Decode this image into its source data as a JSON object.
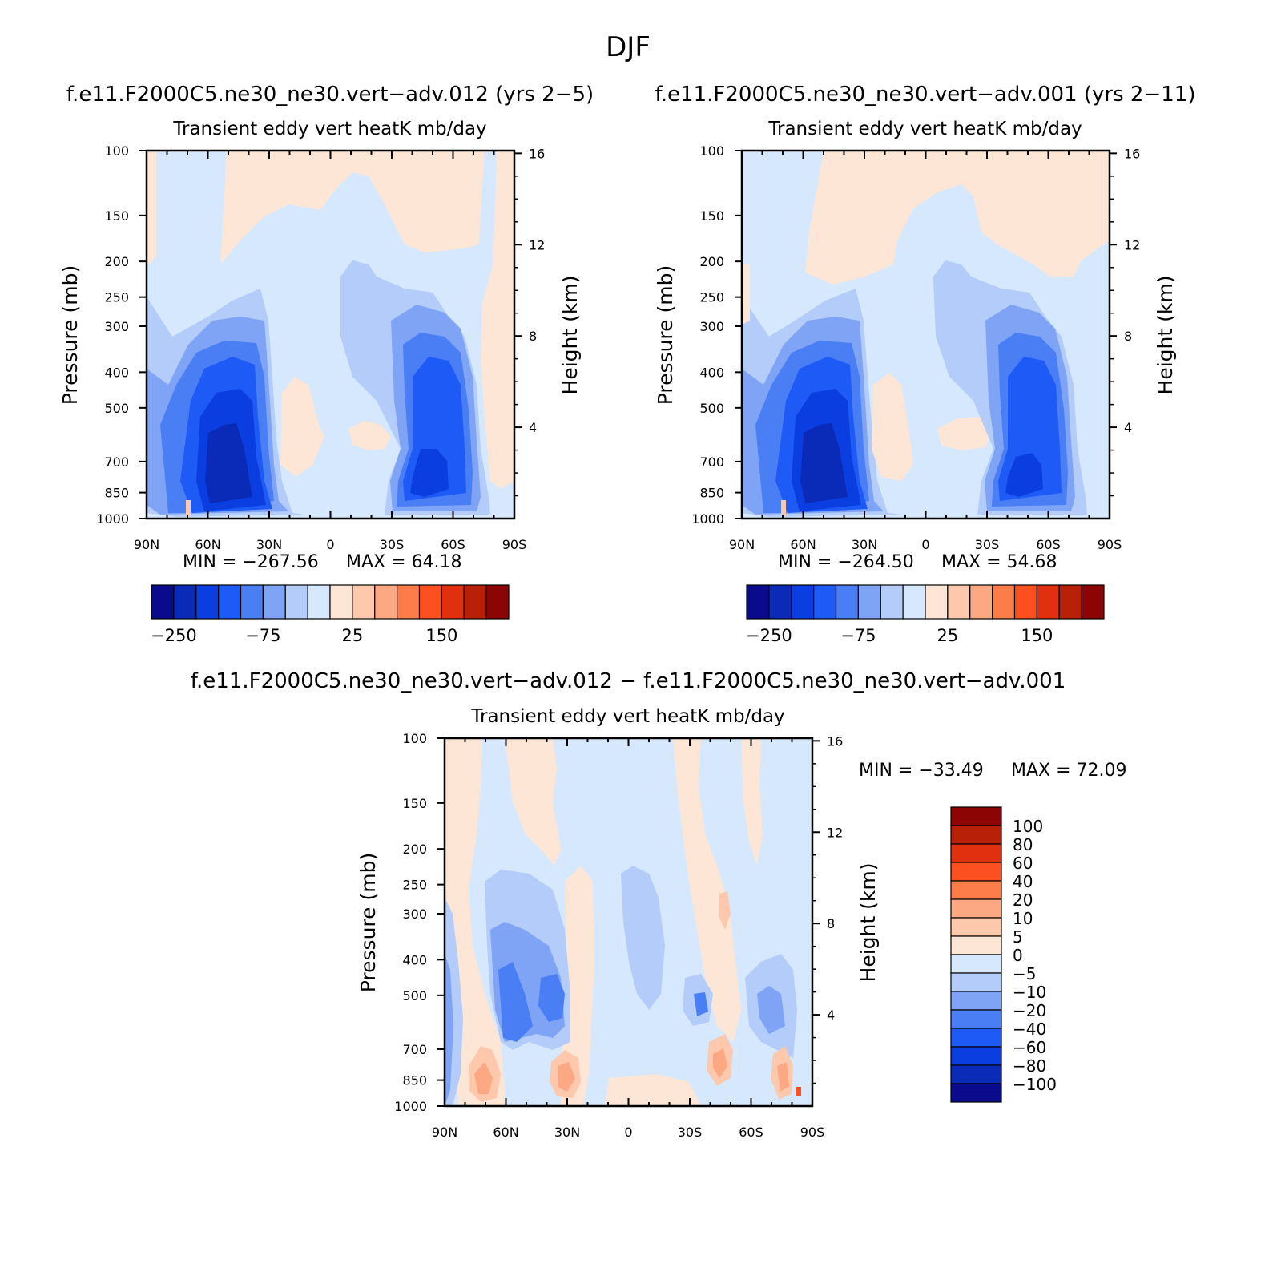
{
  "page_title": "DJF",
  "colors": {
    "blue_scale": [
      "#0a0a8c",
      "#0a2ab8",
      "#0a3ee0",
      "#1e5af5",
      "#4a7ef5",
      "#7fa4f5",
      "#b3ccf9",
      "#d6e8fd"
    ],
    "red_scale": [
      "#fde6d6",
      "#fdc8ac",
      "#fca882",
      "#fc7c4a",
      "#fc5020",
      "#e03010",
      "#b82008",
      "#8c0404"
    ]
  },
  "chart_data": [
    {
      "type": "heatmap",
      "case_title": "f.e11.F2000C5.ne30_ne30.vert−adv.012 (yrs 2−5)",
      "title": "Transient eddy vert heatK mb/day",
      "ylabel": "Pressure (mb)",
      "y2label": "Height (km)",
      "x_ticks": [
        "90N",
        "60N",
        "30N",
        "0",
        "30S",
        "60S",
        "90S"
      ],
      "y_ticks": [
        100,
        150,
        200,
        250,
        300,
        400,
        500,
        700,
        850,
        1000
      ],
      "y2_ticks": [
        16,
        12,
        8,
        4
      ],
      "ylim": [
        1000,
        100
      ],
      "min_text": "MIN = −267.56",
      "max_text": "MAX =   64.18",
      "min": -267.56,
      "max": 64.18,
      "colorbar_labels": [
        "−250",
        "−75",
        "25",
        "150"
      ]
    },
    {
      "type": "heatmap",
      "case_title": "f.e11.F2000C5.ne30_ne30.vert−adv.001 (yrs 2−11)",
      "title": "Transient eddy vert heatK mb/day",
      "ylabel": "Pressure (mb)",
      "y2label": "Height (km)",
      "x_ticks": [
        "90N",
        "60N",
        "30N",
        "0",
        "30S",
        "60S",
        "90S"
      ],
      "y_ticks": [
        100,
        150,
        200,
        250,
        300,
        400,
        500,
        700,
        850,
        1000
      ],
      "y2_ticks": [
        16,
        12,
        8,
        4
      ],
      "ylim": [
        1000,
        100
      ],
      "min_text": "MIN = −264.50",
      "max_text": "MAX =   54.68",
      "min": -264.5,
      "max": 54.68,
      "colorbar_labels": [
        "−250",
        "−75",
        "25",
        "150"
      ]
    },
    {
      "type": "heatmap",
      "case_title": "f.e11.F2000C5.ne30_ne30.vert−adv.012 − f.e11.F2000C5.ne30_ne30.vert−adv.001",
      "title": "Transient eddy vert heatK mb/day",
      "ylabel": "Pressure (mb)",
      "y2label": "Height (km)",
      "x_ticks": [
        "90N",
        "60N",
        "30N",
        "0",
        "30S",
        "60S",
        "90S"
      ],
      "y_ticks": [
        100,
        150,
        200,
        250,
        300,
        400,
        500,
        700,
        850,
        1000
      ],
      "y2_ticks": [
        16,
        12,
        8,
        4
      ],
      "ylim": [
        1000,
        100
      ],
      "min_text": "MIN = −33.49",
      "max_text": "MAX =   72.09",
      "min": -33.49,
      "max": 72.09,
      "colorbar_labels": [
        "100",
        "80",
        "60",
        "40",
        "20",
        "10",
        "5",
        "0",
        "−5",
        "−10",
        "−20",
        "−40",
        "−60",
        "−80",
        "−100"
      ]
    }
  ]
}
